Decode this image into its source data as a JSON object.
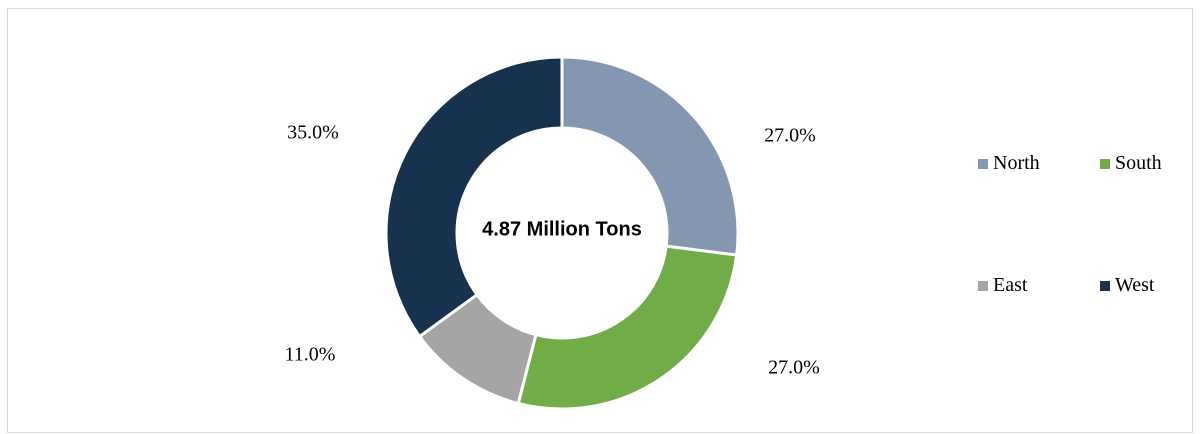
{
  "chart_data": {
    "type": "pie",
    "variant": "donut",
    "center_label": "4.87 Million Tons",
    "categories": [
      "North",
      "South",
      "East",
      "West"
    ],
    "values": [
      27.0,
      27.0,
      11.0,
      35.0
    ],
    "data_labels": [
      "27.0%",
      "27.0%",
      "11.0%",
      "35.0%"
    ],
    "colors": [
      "#8497B0",
      "#70AD47",
      "#A5A5A5",
      "#17324F"
    ],
    "legend_position": "right"
  }
}
